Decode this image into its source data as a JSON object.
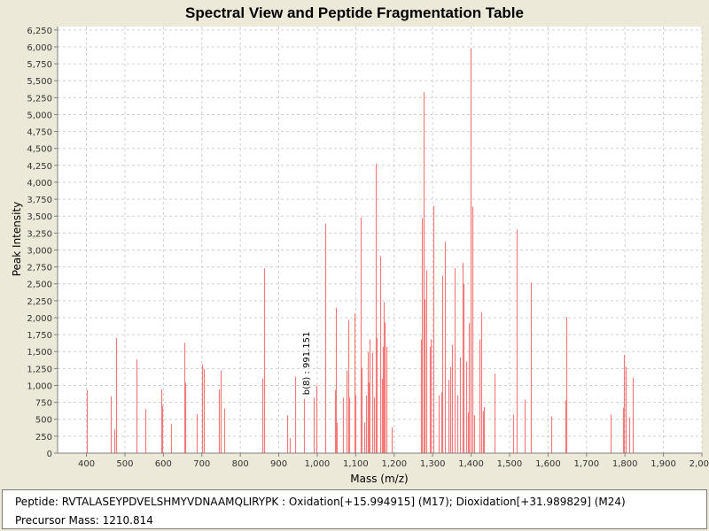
{
  "colors": {
    "background": "#ece9d8",
    "plot_background": "#ffffff",
    "peak": "#f47a7a",
    "grid": "#d0d0d0",
    "axis": "#808080"
  },
  "info": {
    "peptide_label": "Peptide:",
    "peptide_value": "RVTALASEYPDVELSHMYVDNAAMQLIRYPK : Oxidation[+15.994915] (M17); Dioxidation[+31.989829] (M24)",
    "precursor_label": "Precursor Mass:",
    "precursor_value": "1210.814"
  },
  "chart_data": {
    "type": "bar",
    "title": "Spectral View and Peptide Fragmentation Table",
    "xlabel": "Mass (m/z)",
    "ylabel": "Peak Intensity",
    "xlim": [
      325,
      2000
    ],
    "ylim": [
      0,
      6300
    ],
    "grid": true,
    "x_ticks": [
      400,
      500,
      600,
      700,
      800,
      900,
      1000,
      1100,
      1200,
      1300,
      1400,
      1500,
      1600,
      1700,
      1800,
      1900,
      2000
    ],
    "x_tick_labels": [
      "400",
      "500",
      "600",
      "700",
      "800",
      "900",
      "1,000",
      "1,100",
      "1,200",
      "1,300",
      "1,400",
      "1,500",
      "1,600",
      "1,700",
      "1,800",
      "1,900",
      "2,000"
    ],
    "y_ticks": [
      0,
      250,
      500,
      750,
      1000,
      1250,
      1500,
      1750,
      2000,
      2250,
      2500,
      2750,
      3000,
      3250,
      3500,
      3750,
      4000,
      4250,
      4500,
      4750,
      5000,
      5250,
      5500,
      5750,
      6000,
      6250
    ],
    "y_tick_labels": [
      "0",
      "250",
      "500",
      "750",
      "1,000",
      "1,250",
      "1,500",
      "1,750",
      "2,000",
      "2,250",
      "2,500",
      "2,750",
      "3,000",
      "3,250",
      "3,500",
      "3,750",
      "4,000",
      "4,250",
      "4,500",
      "4,750",
      "5,000",
      "5,250",
      "5,500",
      "5,750",
      "6,000",
      "6,250"
    ],
    "annotations": [
      {
        "label": "b(8) : 991.151",
        "mz": 991.151,
        "intensity": 820
      }
    ],
    "peaks": [
      {
        "mz": 400,
        "intensity": 930
      },
      {
        "mz": 464,
        "intensity": 840
      },
      {
        "mz": 472,
        "intensity": 350
      },
      {
        "mz": 477,
        "intensity": 1700
      },
      {
        "mz": 529,
        "intensity": 1380
      },
      {
        "mz": 554,
        "intensity": 650
      },
      {
        "mz": 595,
        "intensity": 940
      },
      {
        "mz": 598,
        "intensity": 700
      },
      {
        "mz": 621,
        "intensity": 430
      },
      {
        "mz": 655,
        "intensity": 1630
      },
      {
        "mz": 657,
        "intensity": 1040
      },
      {
        "mz": 687,
        "intensity": 580
      },
      {
        "mz": 701,
        "intensity": 1310
      },
      {
        "mz": 705,
        "intensity": 1240
      },
      {
        "mz": 745,
        "intensity": 940
      },
      {
        "mz": 750,
        "intensity": 1220
      },
      {
        "mz": 758,
        "intensity": 660
      },
      {
        "mz": 857,
        "intensity": 1100
      },
      {
        "mz": 862,
        "intensity": 2730
      },
      {
        "mz": 922,
        "intensity": 560
      },
      {
        "mz": 928,
        "intensity": 220
      },
      {
        "mz": 942,
        "intensity": 1130
      },
      {
        "mz": 965,
        "intensity": 800
      },
      {
        "mz": 991,
        "intensity": 820
      },
      {
        "mz": 998,
        "intensity": 1000
      },
      {
        "mz": 1020,
        "intensity": 3390
      },
      {
        "mz": 1045,
        "intensity": 930
      },
      {
        "mz": 1048,
        "intensity": 2150
      },
      {
        "mz": 1051,
        "intensity": 450
      },
      {
        "mz": 1067,
        "intensity": 820
      },
      {
        "mz": 1077,
        "intensity": 1220
      },
      {
        "mz": 1080,
        "intensity": 1970
      },
      {
        "mz": 1083,
        "intensity": 820
      },
      {
        "mz": 1096,
        "intensity": 2060
      },
      {
        "mz": 1100,
        "intensity": 850
      },
      {
        "mz": 1114,
        "intensity": 3480
      },
      {
        "mz": 1116,
        "intensity": 1260
      },
      {
        "mz": 1123,
        "intensity": 450
      },
      {
        "mz": 1127,
        "intensity": 850
      },
      {
        "mz": 1131,
        "intensity": 1490
      },
      {
        "mz": 1134,
        "intensity": 1040
      },
      {
        "mz": 1137,
        "intensity": 1680
      },
      {
        "mz": 1142,
        "intensity": 1480
      },
      {
        "mz": 1148,
        "intensity": 820
      },
      {
        "mz": 1152,
        "intensity": 4270
      },
      {
        "mz": 1155,
        "intensity": 1700
      },
      {
        "mz": 1163,
        "intensity": 2910
      },
      {
        "mz": 1168,
        "intensity": 1100
      },
      {
        "mz": 1171,
        "intensity": 1570
      },
      {
        "mz": 1174,
        "intensity": 2230
      },
      {
        "mz": 1176,
        "intensity": 1930
      },
      {
        "mz": 1180,
        "intensity": 1570
      },
      {
        "mz": 1194,
        "intensity": 380
      },
      {
        "mz": 1270,
        "intensity": 1680
      },
      {
        "mz": 1273,
        "intensity": 3470
      },
      {
        "mz": 1276,
        "intensity": 5330
      },
      {
        "mz": 1279,
        "intensity": 2270
      },
      {
        "mz": 1283,
        "intensity": 2700
      },
      {
        "mz": 1292,
        "intensity": 1570
      },
      {
        "mz": 1296,
        "intensity": 1680
      },
      {
        "mz": 1303,
        "intensity": 3650
      },
      {
        "mz": 1316,
        "intensity": 850
      },
      {
        "mz": 1322,
        "intensity": 900
      },
      {
        "mz": 1326,
        "intensity": 2620
      },
      {
        "mz": 1331,
        "intensity": 3120
      },
      {
        "mz": 1340,
        "intensity": 1080
      },
      {
        "mz": 1345,
        "intensity": 1270
      },
      {
        "mz": 1351,
        "intensity": 1600
      },
      {
        "mz": 1358,
        "intensity": 2730
      },
      {
        "mz": 1363,
        "intensity": 850
      },
      {
        "mz": 1372,
        "intensity": 1410
      },
      {
        "mz": 1377,
        "intensity": 2810
      },
      {
        "mz": 1380,
        "intensity": 2500
      },
      {
        "mz": 1386,
        "intensity": 1350
      },
      {
        "mz": 1391,
        "intensity": 600
      },
      {
        "mz": 1395,
        "intensity": 1920
      },
      {
        "mz": 1399,
        "intensity": 5980
      },
      {
        "mz": 1403,
        "intensity": 3640
      },
      {
        "mz": 1407,
        "intensity": 560
      },
      {
        "mz": 1421,
        "intensity": 1680
      },
      {
        "mz": 1427,
        "intensity": 2080
      },
      {
        "mz": 1431,
        "intensity": 620
      },
      {
        "mz": 1434,
        "intensity": 680
      },
      {
        "mz": 1461,
        "intensity": 1170
      },
      {
        "mz": 1510,
        "intensity": 570
      },
      {
        "mz": 1519,
        "intensity": 3300
      },
      {
        "mz": 1540,
        "intensity": 790
      },
      {
        "mz": 1555,
        "intensity": 2520
      },
      {
        "mz": 1608,
        "intensity": 540
      },
      {
        "mz": 1645,
        "intensity": 780
      },
      {
        "mz": 1647,
        "intensity": 2010
      },
      {
        "mz": 1763,
        "intensity": 570
      },
      {
        "mz": 1795,
        "intensity": 670
      },
      {
        "mz": 1798,
        "intensity": 1450
      },
      {
        "mz": 1803,
        "intensity": 1270
      },
      {
        "mz": 1812,
        "intensity": 530
      },
      {
        "mz": 1821,
        "intensity": 1110
      }
    ]
  }
}
